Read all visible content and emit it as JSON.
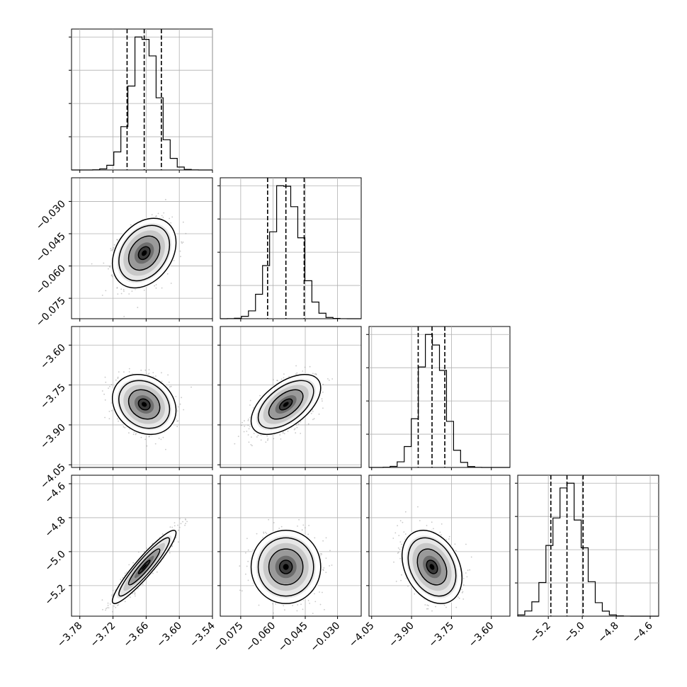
{
  "chart_data": {
    "type": "corner",
    "parameters": [
      {
        "index": 0,
        "range": [
          -3.795,
          -3.54
        ],
        "ticks": [
          "−3.78",
          "−3.72",
          "−3.66",
          "−3.60",
          "−3.54"
        ],
        "tick_values": [
          -3.78,
          -3.72,
          -3.66,
          -3.6,
          -3.54
        ],
        "quantiles": [
          -3.6945,
          -3.6635,
          -3.6325
        ],
        "mean": -3.6635,
        "sd": 0.0235
      },
      {
        "index": 1,
        "range": [
          -0.0845,
          -0.019
        ],
        "ticks": [
          "−0.075",
          "−0.060",
          "−0.045",
          "−0.030"
        ],
        "tick_values": [
          -0.075,
          -0.06,
          -0.045,
          -0.03
        ],
        "quantiles": [
          -0.0625,
          -0.054,
          -0.0455
        ],
        "mean": -0.054,
        "sd": 0.0066
      },
      {
        "index": 2,
        "range": [
          -4.06,
          -3.53
        ],
        "ticks": [
          "−4.05",
          "−3.90",
          "−3.75",
          "−3.60"
        ],
        "tick_values": [
          -4.05,
          -3.9,
          -3.75,
          -3.6
        ],
        "quantiles": [
          -3.875,
          -3.823,
          -3.775
        ],
        "mean": -3.823,
        "sd": 0.046
      },
      {
        "index": 3,
        "range": [
          -5.38,
          -4.55
        ],
        "ticks": [
          "−5.2",
          "−5.0",
          "−4.8",
          "−4.6"
        ],
        "tick_values": [
          -5.2,
          -5.0,
          -4.8,
          -4.6
        ],
        "quantiles": [
          -5.185,
          -5.09,
          -4.995
        ],
        "mean": -5.09,
        "sd": 0.088
      }
    ],
    "row_axes": [
      {
        "row": 1,
        "ticks": [
          "−0.030",
          "−0.045",
          "−0.060",
          "−0.075"
        ],
        "tick_values": [
          -0.03,
          -0.045,
          -0.06,
          -0.075
        ]
      },
      {
        "row": 2,
        "ticks": [
          "−3.60",
          "−3.75",
          "−3.90",
          "−4.05"
        ],
        "tick_values": [
          -3.6,
          -3.75,
          -3.9,
          -4.05
        ]
      },
      {
        "row": 3,
        "ticks": [
          "−4.6",
          "−4.8",
          "−5.0",
          "−5.2"
        ],
        "tick_values": [
          -4.6,
          -4.8,
          -5.0,
          -5.2
        ]
      }
    ],
    "correlations": {
      "0-1": 0.3,
      "0-2": -0.2,
      "0-3": 0.93,
      "1-2": 0.55,
      "1-3": 0.0,
      "2-3": -0.3
    },
    "histogram_bins": 20,
    "grid": true,
    "quantile_lines": "dashed",
    "contour_levels": 3,
    "colors": {
      "line": "#000000",
      "grid": "#b0b0b0",
      "points": "#9a9a9a",
      "density_dark": "#000000",
      "density_light": "#ffffff"
    }
  }
}
